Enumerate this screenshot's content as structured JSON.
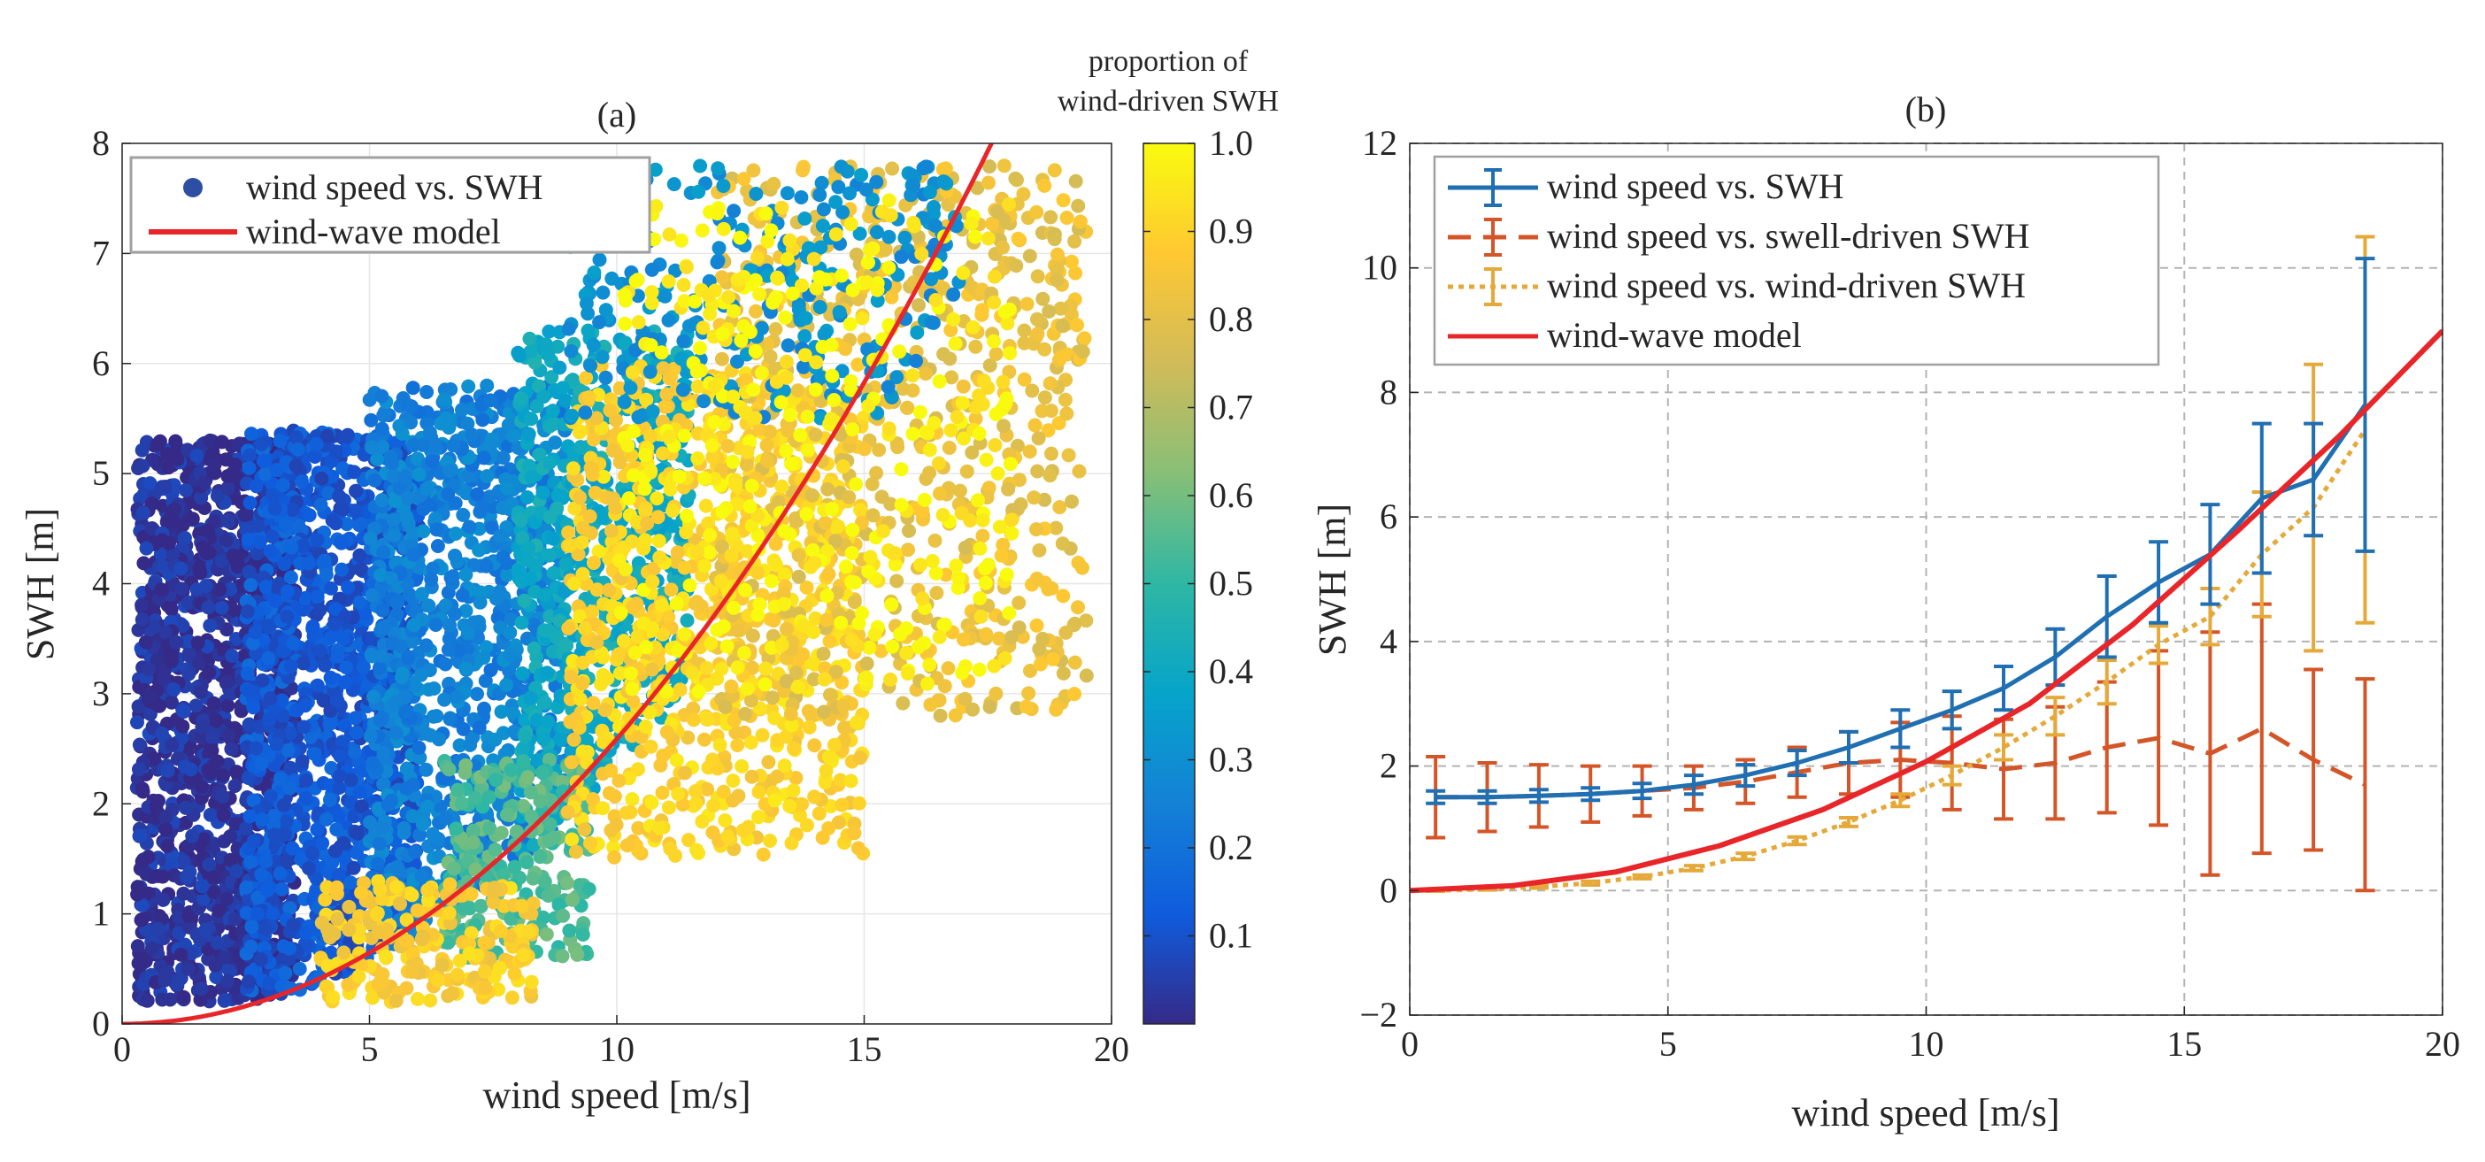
{
  "chart_data": [
    {
      "panel": "a",
      "type": "scatter",
      "title": "(a)",
      "xlabel": "wind speed [m/s]",
      "ylabel": "SWH [m]",
      "xlim": [
        0,
        20
      ],
      "ylim": [
        0,
        8
      ],
      "xticks": [
        "0",
        "5",
        "10",
        "15",
        "20"
      ],
      "yticks": [
        "0",
        "1",
        "2",
        "3",
        "4",
        "5",
        "6",
        "7",
        "8"
      ],
      "grid": true,
      "legend": {
        "position": "top-left",
        "entries": [
          {
            "label": "wind speed vs. SWH",
            "marker": "dot",
            "color": "#2c4ea3"
          },
          {
            "label": "wind-wave model",
            "marker": "line",
            "color": "#e8262a"
          }
        ]
      },
      "colorbar": {
        "title_lines": [
          "proportion of",
          "wind-driven SWH"
        ],
        "range": [
          0,
          1
        ],
        "ticks": [
          "0.1",
          "0.2",
          "0.3",
          "0.4",
          "0.5",
          "0.6",
          "0.7",
          "0.8",
          "0.9",
          "1.0"
        ],
        "tick_values": [
          0.1,
          0.2,
          0.3,
          0.4,
          0.5,
          0.6,
          0.7,
          0.8,
          0.9,
          1.0
        ],
        "colormap": [
          "#352a87",
          "#0f5cdd",
          "#1481d6",
          "#06a4ca",
          "#2eb7a4",
          "#87bf77",
          "#d1bb59",
          "#fec832",
          "#f9fb0e"
        ]
      },
      "scatter_clusters": [
        {
          "x_min": 0.3,
          "x_max": 3.5,
          "y_min": 0.2,
          "y_max": 5.3,
          "c": 0.02,
          "n": 1400
        },
        {
          "x_min": 2.5,
          "x_max": 6.0,
          "y_min": 0.3,
          "y_max": 5.4,
          "c": 0.12,
          "n": 1300
        },
        {
          "x_min": 5.0,
          "x_max": 9.0,
          "y_min": 0.7,
          "y_max": 5.8,
          "c": 0.25,
          "n": 1100
        },
        {
          "x_min": 8.0,
          "x_max": 11.5,
          "y_min": 1.5,
          "y_max": 6.3,
          "c": 0.4,
          "n": 800
        },
        {
          "x_min": 6.5,
          "x_max": 9.5,
          "y_min": 0.6,
          "y_max": 2.4,
          "c": 0.55,
          "n": 250
        },
        {
          "x_min": 4.0,
          "x_max": 8.5,
          "y_min": 0.2,
          "y_max": 1.3,
          "c": 0.88,
          "n": 220
        },
        {
          "x_min": 9.0,
          "x_max": 15.0,
          "y_min": 1.5,
          "y_max": 6.0,
          "c": 0.9,
          "n": 900
        },
        {
          "x_min": 12.0,
          "x_max": 19.5,
          "y_min": 2.8,
          "y_max": 7.8,
          "c": 0.82,
          "n": 700
        },
        {
          "x_min": 9.0,
          "x_max": 17.0,
          "y_min": 5.5,
          "y_max": 7.8,
          "c": 0.3,
          "n": 300
        },
        {
          "x_min": 10.0,
          "x_max": 18.0,
          "y_min": 3.0,
          "y_max": 7.5,
          "c": 0.98,
          "n": 400
        }
      ],
      "model_curve": {
        "name": "wind-wave model",
        "x": [
          0,
          2,
          4,
          6,
          8,
          10,
          12,
          14,
          15,
          16,
          17,
          17.6
        ],
        "y": [
          0,
          0.09,
          0.36,
          0.83,
          1.47,
          2.3,
          3.31,
          4.51,
          5.17,
          5.88,
          6.64,
          7.98
        ]
      }
    },
    {
      "panel": "b",
      "type": "line",
      "title": "(b)",
      "xlabel": "wind speed [m/s]",
      "ylabel": "SWH [m]",
      "xlim": [
        0,
        20
      ],
      "ylim": [
        -2,
        12
      ],
      "xticks": [
        "0",
        "5",
        "10",
        "15",
        "20"
      ],
      "yticks": [
        "−2",
        "0",
        "2",
        "4",
        "6",
        "8",
        "10",
        "12"
      ],
      "grid": true,
      "legend": {
        "position": "top-left"
      },
      "series": [
        {
          "name": "wind speed vs. SWH",
          "color": "#1f6fb2",
          "style": "solid",
          "x": [
            0.5,
            1.5,
            2.5,
            3.5,
            4.5,
            5.5,
            6.5,
            7.5,
            8.5,
            9.5,
            10.5,
            11.5,
            12.5,
            13.5,
            14.5,
            15.5,
            16.5,
            17.5,
            18.5
          ],
          "y": [
            1.5,
            1.5,
            1.52,
            1.55,
            1.6,
            1.7,
            1.85,
            2.05,
            2.3,
            2.6,
            2.9,
            3.25,
            3.75,
            4.4,
            4.95,
            5.4,
            6.3,
            6.6,
            7.8
          ],
          "err": [
            0.1,
            0.1,
            0.1,
            0.1,
            0.12,
            0.15,
            0.17,
            0.2,
            0.25,
            0.3,
            0.3,
            0.35,
            0.45,
            0.65,
            0.65,
            0.8,
            1.2,
            0.9,
            2.35
          ]
        },
        {
          "name": "wind speed vs. swell-driven SWH",
          "color": "#d45527",
          "style": "dashed",
          "x": [
            0.5,
            1.5,
            2.5,
            3.5,
            4.5,
            5.5,
            6.5,
            7.5,
            8.5,
            9.5,
            10.5,
            11.5,
            12.5,
            13.5,
            14.5,
            15.5,
            16.5,
            17.5,
            18.5
          ],
          "y": [
            1.5,
            1.5,
            1.52,
            1.55,
            1.6,
            1.65,
            1.75,
            1.9,
            2.05,
            2.1,
            2.05,
            1.95,
            2.05,
            2.3,
            2.45,
            2.2,
            2.6,
            2.1,
            1.7
          ],
          "err": [
            0.65,
            0.55,
            0.5,
            0.45,
            0.4,
            0.35,
            0.35,
            0.4,
            0.5,
            0.6,
            0.75,
            0.8,
            0.9,
            1.05,
            1.4,
            1.95,
            2.0,
            1.45,
            1.7
          ]
        },
        {
          "name": "wind speed vs. wind-driven SWH",
          "color": "#e5a93a",
          "style": "dotted",
          "x": [
            0.5,
            1.5,
            2.5,
            3.5,
            4.5,
            5.5,
            6.5,
            7.5,
            8.5,
            9.5,
            10.5,
            11.5,
            12.5,
            13.5,
            14.5,
            15.5,
            16.5,
            17.5,
            18.5
          ],
          "y": [
            0,
            0.02,
            0.06,
            0.12,
            0.22,
            0.36,
            0.55,
            0.8,
            1.1,
            1.45,
            1.85,
            2.3,
            2.8,
            3.35,
            3.95,
            4.4,
            5.4,
            6.15,
            7.4
          ],
          "err": [
            0.01,
            0.01,
            0.02,
            0.03,
            0.03,
            0.04,
            0.05,
            0.06,
            0.07,
            0.1,
            0.15,
            0.2,
            0.3,
            0.35,
            0.3,
            0.45,
            1.0,
            2.3,
            3.1
          ]
        },
        {
          "name": "wind-wave model",
          "color": "#e8262a",
          "style": "solid",
          "x": [
            0,
            2,
            4,
            6,
            8,
            10,
            12,
            14,
            16,
            18,
            20
          ],
          "y": [
            0,
            0.08,
            0.3,
            0.72,
            1.3,
            2.07,
            3.0,
            4.27,
            5.75,
            7.3,
            8.99
          ]
        }
      ]
    }
  ]
}
